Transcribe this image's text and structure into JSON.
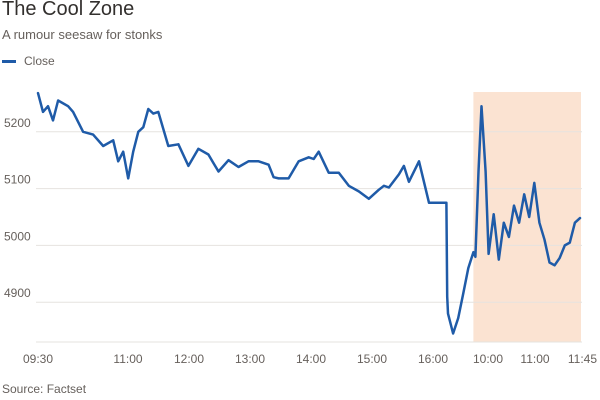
{
  "chart_data": {
    "type": "line",
    "title": "The Cool Zone",
    "subtitle": "A rumour seesaw for stonks",
    "source": "Source: Factset",
    "legend": {
      "placement": "top-left",
      "entries": [
        "Close"
      ]
    },
    "grid": true,
    "colors": {
      "line": "#1f5ba8",
      "highlight": "#fbe3d2",
      "grid": "#e6e3df"
    },
    "y_ticks": [
      4900,
      5000,
      5100,
      5200
    ],
    "ylim": [
      4830,
      5270
    ],
    "x_tick_labels": [
      "09:30",
      "11:00",
      "12:00",
      "13:00",
      "14:00",
      "15:00",
      "16:00",
      "10:00",
      "11:00",
      "11:45"
    ],
    "highlight": {
      "from": "10:00 (day 2)",
      "to": "11:45 (day 2)"
    },
    "series": [
      {
        "name": "Close",
        "segments": [
          {
            "day": 1,
            "x_range": [
              "09:30",
              "16:00"
            ],
            "x": [
              "09:30",
              "09:35",
              "09:40",
              "09:45",
              "09:50",
              "10:00",
              "10:05",
              "10:15",
              "10:25",
              "10:35",
              "10:45",
              "10:50",
              "10:55",
              "11:00",
              "11:05",
              "11:10",
              "11:15",
              "11:20",
              "11:25",
              "11:30",
              "11:40",
              "11:50",
              "12:00",
              "12:10",
              "12:20",
              "12:25",
              "12:30",
              "12:40",
              "12:50",
              "13:00",
              "13:10",
              "13:20",
              "13:25",
              "13:30",
              "13:40",
              "13:50",
              "14:00",
              "14:05",
              "14:10",
              "14:20",
              "14:30",
              "14:40",
              "14:50",
              "15:00",
              "15:10",
              "15:15",
              "15:20",
              "15:30",
              "15:35",
              "15:40",
              "15:50",
              "16:00"
            ],
            "values": [
              5268,
              5235,
              5245,
              5220,
              5255,
              5245,
              5235,
              5200,
              5195,
              5175,
              5185,
              5148,
              5165,
              5118,
              5165,
              5200,
              5208,
              5240,
              5232,
              5235,
              5175,
              5178,
              5140,
              5170,
              5160,
              5145,
              5130,
              5150,
              5138,
              5148,
              5148,
              5142,
              5120,
              5118,
              5118,
              5148,
              5155,
              5152,
              5165,
              5128,
              5128,
              5105,
              5095,
              5082,
              5098,
              5105,
              5102,
              5125,
              5140,
              5112,
              5148,
              5075
            ]
          },
          {
            "day": 2,
            "x_range": [
              "09:30",
              "11:45"
            ],
            "x": [
              "09:30",
              "09:31",
              "09:33",
              "09:35",
              "09:40",
              "09:45",
              "09:50",
              "09:55",
              "10:00",
              "10:02",
              "10:05",
              "10:08",
              "10:12",
              "10:15",
              "10:20",
              "10:25",
              "10:30",
              "10:35",
              "10:40",
              "10:45",
              "10:50",
              "10:55",
              "11:00",
              "11:05",
              "11:10",
              "11:15",
              "11:20",
              "11:25",
              "11:30",
              "11:35",
              "11:40",
              "11:45"
            ],
            "values": [
              5075,
              5075,
              4910,
              4880,
              4845,
              4872,
              4915,
              4960,
              4988,
              4980,
              5130,
              5245,
              5130,
              4985,
              5055,
              4975,
              5040,
              5015,
              5070,
              5040,
              5090,
              5050,
              5110,
              5040,
              5010,
              4970,
              4965,
              4978,
              5000,
              5005,
              5040,
              5048
            ]
          }
        ]
      }
    ]
  }
}
